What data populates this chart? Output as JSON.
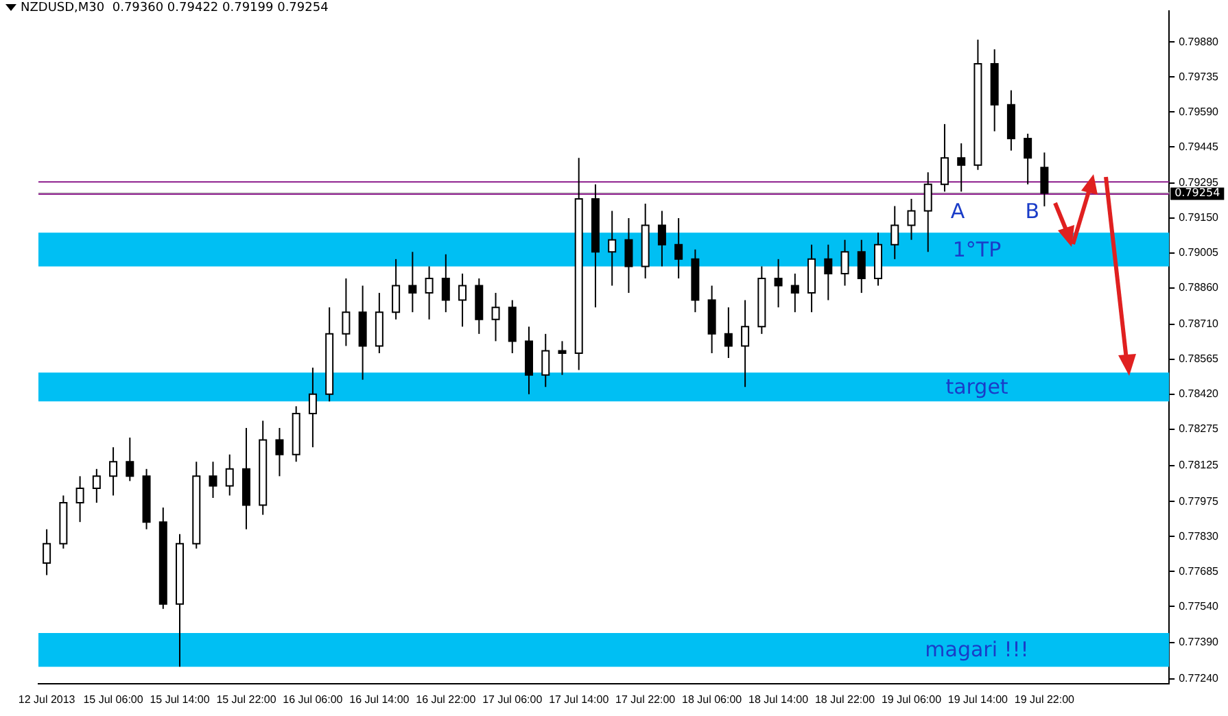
{
  "chart_data": {
    "type": "candlestick",
    "title": "NZDUSD,M30  0.79360 0.79422 0.79199 0.79254",
    "categories": [
      "12 Jul 2013",
      null,
      null,
      null,
      "15 Jul 06:00",
      null,
      null,
      null,
      "15 Jul 14:00",
      null,
      null,
      null,
      "15 Jul 22:00",
      null,
      null,
      null,
      "16 Jul 06:00",
      null,
      null,
      null,
      "16 Jul 14:00",
      null,
      null,
      null,
      "16 Jul 22:00",
      null,
      null,
      null,
      "17 Jul 06:00",
      null,
      null,
      null,
      "17 Jul 14:00",
      null,
      null,
      null,
      "17 Jul 22:00",
      null,
      null,
      null,
      "18 Jul 06:00",
      null,
      null,
      null,
      "18 Jul 14:00",
      null,
      null,
      null,
      "18 Jul 22:00",
      null,
      null,
      null,
      "19 Jul 06:00",
      null,
      null,
      null,
      "19 Jul 14:00",
      null,
      null,
      null,
      "19 Jul 22:00",
      null,
      null,
      null,
      null,
      null,
      null,
      null
    ],
    "ohlc": [
      [
        0.7772,
        0.7786,
        0.7767,
        0.778
      ],
      [
        0.778,
        0.78,
        0.7778,
        0.7797
      ],
      [
        0.7797,
        0.7808,
        0.7789,
        0.7803
      ],
      [
        0.7803,
        0.7811,
        0.7797,
        0.7808
      ],
      [
        0.7808,
        0.782,
        0.78,
        0.7814
      ],
      [
        0.7814,
        0.7824,
        0.7806,
        0.7808
      ],
      [
        0.7808,
        0.7811,
        0.7786,
        0.7789
      ],
      [
        0.7789,
        0.7795,
        0.7753,
        0.7755
      ],
      [
        0.7755,
        0.7784,
        0.7729,
        0.778
      ],
      [
        0.778,
        0.7814,
        0.7778,
        0.7808
      ],
      [
        0.7808,
        0.7814,
        0.7799,
        0.7804
      ],
      [
        0.7804,
        0.7817,
        0.78,
        0.7811
      ],
      [
        0.7811,
        0.7828,
        0.7786,
        0.7796
      ],
      [
        0.7796,
        0.7831,
        0.7792,
        0.7823
      ],
      [
        0.7823,
        0.7828,
        0.7808,
        0.7817
      ],
      [
        0.7817,
        0.7837,
        0.7814,
        0.7834
      ],
      [
        0.7834,
        0.7853,
        0.782,
        0.7842
      ],
      [
        0.7842,
        0.7878,
        0.7839,
        0.7867
      ],
      [
        0.7867,
        0.789,
        0.7862,
        0.7876
      ],
      [
        0.7876,
        0.7887,
        0.7848,
        0.7862
      ],
      [
        0.7862,
        0.7884,
        0.7859,
        0.7876
      ],
      [
        0.7876,
        0.7898,
        0.7873,
        0.7887
      ],
      [
        0.7887,
        0.7901,
        0.7876,
        0.7884
      ],
      [
        0.7884,
        0.7895,
        0.7873,
        0.789
      ],
      [
        0.789,
        0.79,
        0.7876,
        0.7881
      ],
      [
        0.7881,
        0.7892,
        0.787,
        0.7887
      ],
      [
        0.7887,
        0.789,
        0.7867,
        0.7873
      ],
      [
        0.7873,
        0.7884,
        0.7864,
        0.7878
      ],
      [
        0.7878,
        0.7881,
        0.7859,
        0.7864
      ],
      [
        0.7864,
        0.787,
        0.7842,
        0.785
      ],
      [
        0.785,
        0.7867,
        0.7845,
        0.786
      ],
      [
        0.786,
        0.7864,
        0.785,
        0.7859
      ],
      [
        0.7859,
        0.794,
        0.7852,
        0.7923
      ],
      [
        0.7923,
        0.7929,
        0.7878,
        0.7901
      ],
      [
        0.7901,
        0.7918,
        0.7887,
        0.7906
      ],
      [
        0.7906,
        0.7915,
        0.7884,
        0.7895
      ],
      [
        0.7895,
        0.7921,
        0.789,
        0.7912
      ],
      [
        0.7912,
        0.7918,
        0.7895,
        0.7904
      ],
      [
        0.7904,
        0.7915,
        0.789,
        0.7898
      ],
      [
        0.7898,
        0.7902,
        0.7876,
        0.7881
      ],
      [
        0.7881,
        0.7887,
        0.7859,
        0.7867
      ],
      [
        0.7867,
        0.7878,
        0.7857,
        0.7862
      ],
      [
        0.7862,
        0.7881,
        0.7845,
        0.787
      ],
      [
        0.787,
        0.7895,
        0.7867,
        0.789
      ],
      [
        0.789,
        0.7898,
        0.7878,
        0.7887
      ],
      [
        0.7887,
        0.7892,
        0.7876,
        0.7884
      ],
      [
        0.7884,
        0.7904,
        0.7876,
        0.7898
      ],
      [
        0.7898,
        0.7904,
        0.7881,
        0.7892
      ],
      [
        0.7892,
        0.7906,
        0.7887,
        0.7901
      ],
      [
        0.7901,
        0.7906,
        0.7884,
        0.789
      ],
      [
        0.789,
        0.7909,
        0.7887,
        0.7904
      ],
      [
        0.7904,
        0.792,
        0.7898,
        0.7912
      ],
      [
        0.7912,
        0.7923,
        0.7906,
        0.7918
      ],
      [
        0.7918,
        0.7934,
        0.7901,
        0.7929
      ],
      [
        0.7929,
        0.7954,
        0.7926,
        0.794
      ],
      [
        0.794,
        0.7946,
        0.7926,
        0.7937
      ],
      [
        0.7937,
        0.7989,
        0.7935,
        0.7979
      ],
      [
        0.7979,
        0.7985,
        0.7951,
        0.7962
      ],
      [
        0.7962,
        0.7968,
        0.7943,
        0.7948
      ],
      [
        0.7948,
        0.795,
        0.7929,
        0.794
      ],
      [
        0.7936,
        0.79422,
        0.79199,
        0.79254
      ],
      null,
      null,
      null,
      null,
      null,
      null,
      null
    ],
    "ylim": [
      0.7722,
      0.8001
    ],
    "yticks": [
      {
        "value": 0.7724,
        "label": "0.77240"
      },
      {
        "value": 0.7739,
        "label": "0.77390"
      },
      {
        "value": 0.7754,
        "label": "0.77540"
      },
      {
        "value": 0.77685,
        "label": "0.77685"
      },
      {
        "value": 0.7783,
        "label": "0.77830"
      },
      {
        "value": 0.77975,
        "label": "0.77975"
      },
      {
        "value": 0.78125,
        "label": "0.78125"
      },
      {
        "value": 0.78275,
        "label": "0.78275"
      },
      {
        "value": 0.7842,
        "label": "0.78420"
      },
      {
        "value": 0.78565,
        "label": "0.78565"
      },
      {
        "value": 0.7871,
        "label": "0.78710"
      },
      {
        "value": 0.7886,
        "label": "0.78860"
      },
      {
        "value": 0.79005,
        "label": "0.79005"
      },
      {
        "value": 0.7915,
        "label": "0.79150"
      },
      {
        "value": 0.79295,
        "label": "0.79295"
      },
      {
        "value": 0.79445,
        "label": "0.79445"
      },
      {
        "value": 0.7959,
        "label": "0.79590"
      },
      {
        "value": 0.79735,
        "label": "0.79735"
      },
      {
        "value": 0.7988,
        "label": "0.79880"
      }
    ],
    "bands": [
      {
        "axis": "y",
        "from": 0.7729,
        "to": 0.7743,
        "label": "magari !!!",
        "color": "#00bff3"
      },
      {
        "axis": "y",
        "from": 0.7839,
        "to": 0.7851,
        "label": "target",
        "color": "#00bff3"
      },
      {
        "axis": "y",
        "from": 0.7895,
        "to": 0.7909,
        "label": "1°TP",
        "color": "#00bff3"
      }
    ],
    "ref_lines": [
      {
        "axis": "y",
        "value": 0.79254,
        "label": "0.79254",
        "color": "#c0c0c0"
      },
      {
        "axis": "y",
        "value": 0.7925,
        "color": "#8b1a8b"
      },
      {
        "axis": "y",
        "value": 0.793,
        "color": "#8b1a8b"
      }
    ],
    "annotations": [
      "A",
      "B"
    ],
    "legend": false,
    "grid": false
  }
}
